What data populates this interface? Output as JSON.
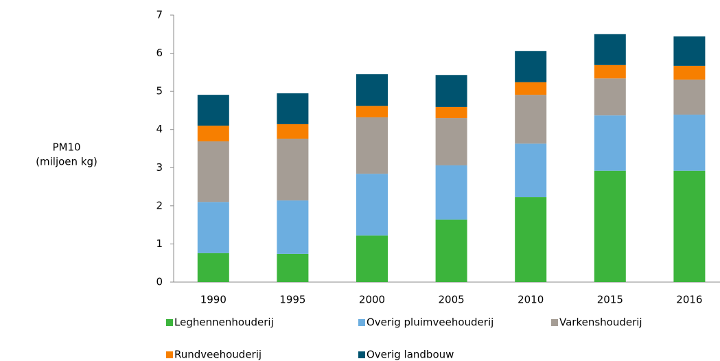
{
  "chart_data": {
    "type": "stacked-bar",
    "ylabel": [
      "PM10",
      "(miljoen kg)"
    ],
    "categories": [
      "1990",
      "1995",
      "2000",
      "2005",
      "2010",
      "2015",
      "2016"
    ],
    "series": [
      {
        "name": "Leghennenhouderij",
        "color": "#3cb43c",
        "values": [
          0.76,
          0.74,
          1.22,
          1.64,
          2.23,
          2.92,
          2.92
        ]
      },
      {
        "name": "Overig pluimveehouderij",
        "color": "#6caee0",
        "values": [
          1.34,
          1.4,
          1.62,
          1.42,
          1.4,
          1.45,
          1.47
        ]
      },
      {
        "name": "Varkenshouderij",
        "color": "#a59d95",
        "values": [
          1.59,
          1.62,
          1.48,
          1.24,
          1.28,
          0.97,
          0.92
        ]
      },
      {
        "name": "Rundveehouderij",
        "color": "#f77f00",
        "values": [
          0.41,
          0.38,
          0.3,
          0.29,
          0.33,
          0.35,
          0.36
        ]
      },
      {
        "name": "Overig landbouw",
        "color": "#00536f",
        "values": [
          0.81,
          0.81,
          0.83,
          0.84,
          0.82,
          0.81,
          0.77
        ]
      }
    ],
    "ylim": [
      0,
      7
    ],
    "yticks": [
      0,
      1,
      2,
      3,
      4,
      5,
      6,
      7
    ],
    "grid": false,
    "legend": "bottom"
  }
}
